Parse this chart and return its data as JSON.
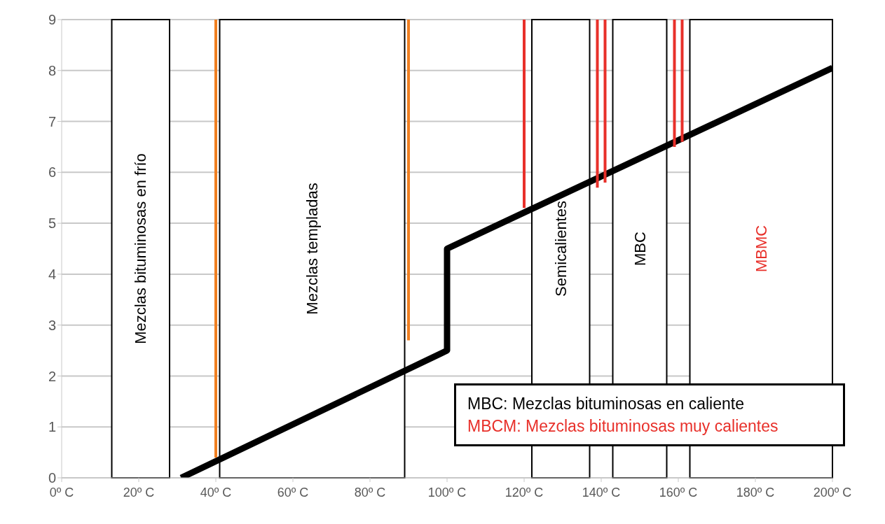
{
  "chart_data": {
    "type": "line",
    "x": [
      31,
      100,
      100,
      200
    ],
    "series": [
      {
        "color": "#000000",
        "values": [
          0,
          2.5,
          4.5,
          8.05
        ]
      },
      {
        "color": "#f07f21",
        "x": [
          40,
          40
        ],
        "values": [
          0.4,
          9
        ]
      },
      {
        "color": "#f07f21",
        "x": [
          90,
          90
        ],
        "values": [
          2.7,
          9
        ]
      },
      {
        "color": "#e8302a",
        "x": [
          120,
          120
        ],
        "values": [
          5.3,
          9
        ]
      },
      {
        "color": "#e8302a",
        "x": [
          139,
          139
        ],
        "values": [
          5.7,
          9
        ]
      },
      {
        "color": "#e8302a",
        "x": [
          141,
          141
        ],
        "values": [
          5.8,
          9
        ]
      },
      {
        "color": "#e8302a",
        "x": [
          159,
          159
        ],
        "values": [
          6.5,
          9
        ]
      },
      {
        "color": "#e8302a",
        "x": [
          161,
          161
        ],
        "values": [
          6.6,
          9
        ]
      }
    ],
    "bands": [
      {
        "axis": "x",
        "from": 13,
        "to": 28,
        "label": "Mezclas bituminosas en frío",
        "color": "#ffffff"
      },
      {
        "axis": "x",
        "from": 41,
        "to": 89,
        "label": "Mezclas templadas",
        "color": "#ffffff"
      },
      {
        "axis": "x",
        "from": 122,
        "to": 137,
        "label": "Semicalientes",
        "color": "#ffffff"
      },
      {
        "axis": "x",
        "from": 143,
        "to": 157,
        "label": "MBC",
        "color": "#ffffff"
      },
      {
        "axis": "x",
        "from": 163,
        "to": 200,
        "label": "MBMC",
        "color": "#ffffff"
      }
    ],
    "annotations": [
      "MBC: Mezclas bituminosas en caliente",
      "MBCM: Mezclas bituminosas muy calientes"
    ],
    "xlim": [
      0,
      200
    ],
    "xticks": [
      {
        "value": 0,
        "label": "0º C"
      },
      {
        "value": 20,
        "label": "20º C"
      },
      {
        "value": 40,
        "label": "40º C"
      },
      {
        "value": 60,
        "label": "60º C"
      },
      {
        "value": 80,
        "label": "80º C"
      },
      {
        "value": 100,
        "label": "100º C"
      },
      {
        "value": 120,
        "label": "120º C"
      },
      {
        "value": 140,
        "label": "140º C"
      },
      {
        "value": 160,
        "label": "160º C"
      },
      {
        "value": 180,
        "label": "180º C"
      },
      {
        "value": 200,
        "label": "200º C"
      }
    ],
    "ylim": [
      0,
      9
    ],
    "yticks": [
      0,
      1,
      2,
      3,
      4,
      5,
      6,
      7,
      8,
      9
    ],
    "grid": "y",
    "marker": "none",
    "line_style": "solid"
  }
}
